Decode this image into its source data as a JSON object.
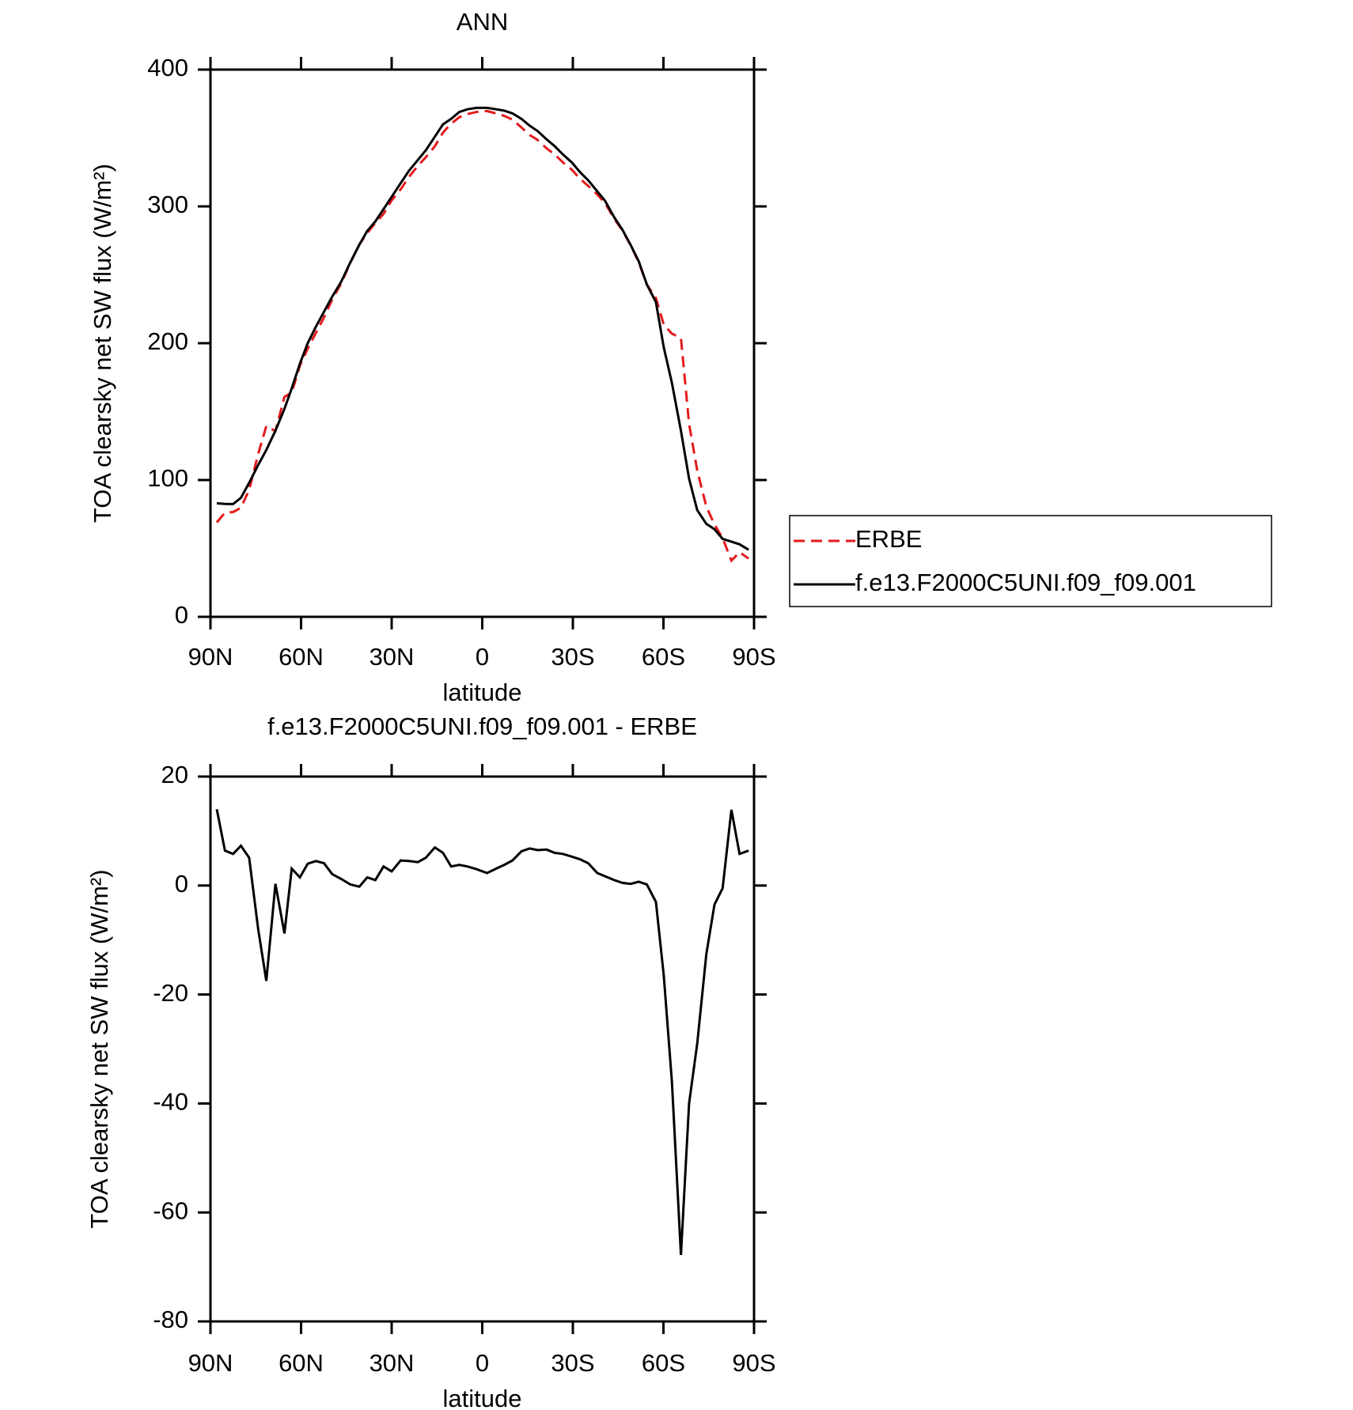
{
  "chart_data": [
    {
      "type": "line",
      "title": "ANN",
      "xlabel": "latitude",
      "ylabel": "TOA clearsky net SW flux (W/m²)",
      "x": [
        87.9,
        85.2,
        82.5,
        79.9,
        77.2,
        74.2,
        71.5,
        68.5,
        65.5,
        63.1,
        60.4,
        57.8,
        55.1,
        52.4,
        49.7,
        46.7,
        43.7,
        40.7,
        38.1,
        35.4,
        32.7,
        30.0,
        27.0,
        24.3,
        21.3,
        18.7,
        15.7,
        13.0,
        10.3,
        7.6,
        4.9,
        1.9,
        -1.6,
        -4.6,
        -7.3,
        -10.0,
        -13.0,
        -15.7,
        -18.4,
        -21.3,
        -24.0,
        -26.7,
        -29.7,
        -32.4,
        -35.1,
        -38.1,
        -40.7,
        -43.7,
        -46.4,
        -49.1,
        -51.8,
        -54.5,
        -57.5,
        -60.1,
        -62.8,
        -65.8,
        -68.5,
        -71.2,
        -74.2,
        -76.9,
        -79.6,
        -82.5,
        -85.2,
        -88.2
      ],
      "series": [
        {
          "name": "ERBE",
          "color": "#e41a1c",
          "linestyle": "dashed",
          "values": [
            69.0,
            76.1,
            76.6,
            79.7,
            92.9,
            119,
            139.5,
            135.7,
            160.8,
            163.9,
            183.5,
            196,
            207.5,
            218.9,
            231.9,
            243.8,
            258.8,
            272.2,
            280.5,
            288,
            294.5,
            304.4,
            312.4,
            321.5,
            329.7,
            335.9,
            344,
            354,
            360.5,
            365.2,
            367.5,
            369,
            369.7,
            367.9,
            366.2,
            363.4,
            357.7,
            352.2,
            348.5,
            342.4,
            338,
            332.2,
            326.7,
            320.2,
            314.9,
            308.7,
            302.3,
            291,
            282.5,
            271.7,
            259.3,
            242.8,
            233,
            213.5,
            207,
            203.8,
            141,
            107,
            80.6,
            67.5,
            57.5,
            41.1,
            47.2,
            42.6
          ]
        },
        {
          "name": "f.e13.F2000C5UNI.f09_f09.001",
          "color": "#000000",
          "linestyle": "solid",
          "values": [
            83,
            82.5,
            82.4,
            87,
            98,
            111,
            122,
            136,
            152,
            167,
            185,
            200,
            212,
            223,
            234,
            245,
            259,
            272,
            282,
            289,
            298,
            307,
            317,
            326,
            334,
            341,
            351,
            360,
            364,
            369,
            371,
            372,
            372,
            371,
            370,
            368,
            364,
            359,
            355,
            349,
            344,
            338,
            332,
            325,
            319,
            311,
            304,
            292,
            283,
            272,
            260,
            243,
            230,
            197,
            171,
            136,
            101,
            78,
            68,
            64,
            57,
            55,
            53,
            49
          ]
        }
      ],
      "xlim": [
        90,
        -90
      ],
      "xticks": [
        {
          "value": 90,
          "label": "90N"
        },
        {
          "value": 60,
          "label": "60N"
        },
        {
          "value": 30,
          "label": "30N"
        },
        0,
        {
          "value": -30,
          "label": "30S"
        },
        {
          "value": -60,
          "label": "60S"
        },
        {
          "value": -90,
          "label": "90S"
        }
      ],
      "ylim": [
        0,
        400
      ],
      "yticks": [
        0,
        100,
        200,
        300,
        400
      ],
      "legend": "outside-right"
    },
    {
      "type": "line",
      "title": "f.e13.F2000C5UNI.f09_f09.001 - ERBE",
      "xlabel": "latitude",
      "ylabel": "TOA clearsky net SW flux (W/m²)",
      "x": [
        87.9,
        85.2,
        82.5,
        79.9,
        77.2,
        74.2,
        71.5,
        68.5,
        65.5,
        63.1,
        60.4,
        57.8,
        55.1,
        52.4,
        49.7,
        46.7,
        43.7,
        40.7,
        38.1,
        35.4,
        32.7,
        30.0,
        27.0,
        24.3,
        21.3,
        18.7,
        15.7,
        13.0,
        10.3,
        7.6,
        4.9,
        1.9,
        -1.6,
        -4.6,
        -7.3,
        -10.0,
        -13.0,
        -15.7,
        -18.4,
        -21.3,
        -24.0,
        -26.7,
        -29.7,
        -32.4,
        -35.1,
        -38.1,
        -40.7,
        -43.7,
        -46.4,
        -49.1,
        -51.8,
        -54.5,
        -57.5,
        -60.1,
        -62.8,
        -65.8,
        -68.5,
        -71.2,
        -74.2,
        -76.9,
        -79.6,
        -82.5,
        -85.2,
        -88.2
      ],
      "values": [
        14.0,
        6.4,
        5.8,
        7.3,
        5.1,
        -8,
        -17.5,
        0.3,
        -8.8,
        3.1,
        1.5,
        4,
        4.5,
        4.1,
        2.1,
        1.2,
        0.2,
        -0.2,
        1.5,
        1.0,
        3.5,
        2.6,
        4.6,
        4.5,
        4.3,
        5.1,
        7,
        6,
        3.5,
        3.8,
        3.5,
        3,
        2.3,
        3.1,
        3.8,
        4.6,
        6.3,
        6.8,
        6.5,
        6.6,
        6,
        5.8,
        5.3,
        4.8,
        4.1,
        2.3,
        1.7,
        1,
        0.5,
        0.3,
        0.7,
        0.2,
        -3,
        -16.5,
        -36,
        -67.8,
        -40,
        -29,
        -12.6,
        -3.5,
        -0.5,
        13.9,
        5.8,
        6.4
      ],
      "color": "#000000",
      "xlim": [
        90,
        -90
      ],
      "xticks": [
        {
          "value": 90,
          "label": "90N"
        },
        {
          "value": 60,
          "label": "60N"
        },
        {
          "value": 30,
          "label": "30N"
        },
        0,
        {
          "value": -30,
          "label": "30S"
        },
        {
          "value": -60,
          "label": "60S"
        },
        {
          "value": -90,
          "label": "90S"
        }
      ],
      "ylim": [
        -80,
        20
      ],
      "yticks": [
        -80,
        -60,
        -40,
        -20,
        0,
        20
      ]
    }
  ]
}
